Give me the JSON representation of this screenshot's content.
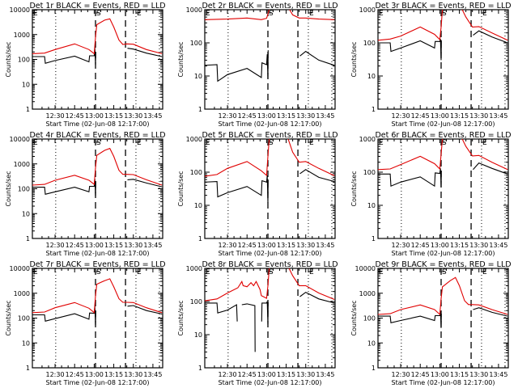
{
  "figure": {
    "xlabel": "Start Time (02-Jun-08 12:17:00)",
    "ylabel": "Counts/sec",
    "title_suffix": " BLACK = Events, RED = LLD",
    "xticks": [
      "12:30",
      "12:45",
      "13:00",
      "13:15",
      "13:30",
      "13:45"
    ],
    "xticks_min": [
      30,
      45,
      60,
      75,
      90,
      105
    ],
    "xrange_min": [
      12.6,
      112.5
    ],
    "dotted_lines_min": [
      30.5,
      92,
      110
    ],
    "dashed_lines_min": [
      61,
      84
    ],
    "markers": [
      {
        "label": "E",
        "at_min": 12.6,
        "bracket": "left"
      },
      {
        "label": "S",
        "at_min": 61,
        "bracket": "left"
      },
      {
        "label": "E",
        "at_min": 92,
        "bracket": "left"
      }
    ],
    "colors": {
      "events": "#000000",
      "lld": "#e00000"
    }
  },
  "chart_data": [
    {
      "type": "line",
      "title": "Det 1r BLACK = Events, RED = LLD",
      "ylim": [
        1,
        10000
      ],
      "yscale": "log",
      "yticks": [
        "1",
        "10",
        "100",
        "1000",
        "10000"
      ],
      "series": [
        {
          "name": "Events",
          "x": [
            12.6,
            22,
            22.5,
            30,
            45,
            56,
            56.5,
            60,
            60.5,
            61,
            61.2,
            61.5,
            85,
            85.5,
            90,
            100,
            112
          ],
          "y": [
            130,
            130,
            70,
            90,
            135,
            80,
            140,
            140,
            300,
            60,
            200,
            null,
            null,
            280,
            260,
            180,
            130
          ]
        },
        {
          "name": "LLD",
          "x": [
            12.6,
            22,
            30,
            45,
            56,
            60,
            61,
            62,
            68,
            72,
            75,
            79,
            82,
            85,
            90,
            100,
            112
          ],
          "y": [
            170,
            180,
            250,
            420,
            250,
            170,
            800,
            2500,
            3800,
            4300,
            2000,
            600,
            400,
            420,
            410,
            250,
            170
          ]
        }
      ]
    },
    {
      "type": "line",
      "title": "Det 2r BLACK = Events, RED = LLD",
      "ylim": [
        1,
        1000
      ],
      "yscale": "log",
      "yticks": [
        "1",
        "10",
        "100",
        "1000"
      ],
      "series": [
        {
          "name": "Events",
          "x": [
            12.6,
            22,
            22.5,
            30,
            45,
            56,
            56.5,
            60,
            60.5,
            61,
            61.2,
            61.5,
            85,
            85.5,
            90,
            100,
            112
          ],
          "y": [
            21,
            22,
            7,
            11,
            17,
            9,
            25,
            22,
            45,
            8,
            60,
            null,
            null,
            40,
            55,
            30,
            21
          ]
        },
        {
          "name": "LLD",
          "x": [
            12.6,
            30,
            45,
            56,
            60,
            62,
            64,
            75,
            80,
            85,
            90,
            100,
            112
          ],
          "y": [
            500,
            520,
            560,
            500,
            550,
            1000,
            1500,
            1500,
            700,
            560,
            560,
            520,
            500
          ]
        }
      ]
    },
    {
      "type": "line",
      "title": "Det 3r BLACK = Events, RED = LLD",
      "ylim": [
        1,
        1000
      ],
      "yscale": "log",
      "yticks": [
        "1",
        "10",
        "100",
        "1000"
      ],
      "series": [
        {
          "name": "Events",
          "x": [
            12.6,
            22,
            22.5,
            30,
            45,
            56,
            56.5,
            60,
            60.5,
            61,
            61.2,
            61.5,
            85,
            85.5,
            90,
            100,
            112
          ],
          "y": [
            100,
            100,
            55,
            70,
            115,
            70,
            110,
            110,
            130,
            30,
            120,
            null,
            null,
            170,
            230,
            150,
            100
          ]
        },
        {
          "name": "LLD",
          "x": [
            12.6,
            22,
            30,
            45,
            56,
            60,
            61,
            62,
            64,
            75,
            80,
            85,
            90,
            100,
            112
          ],
          "y": [
            120,
            130,
            160,
            300,
            180,
            125,
            300,
            1000,
            1500,
            1500,
            600,
            300,
            310,
            200,
            120
          ]
        }
      ]
    },
    {
      "type": "line",
      "title": "Det 4r BLACK = Events, RED = LLD",
      "ylim": [
        1,
        10000
      ],
      "yscale": "log",
      "yticks": [
        "1",
        "10",
        "100",
        "1000",
        "10000"
      ],
      "series": [
        {
          "name": "Events",
          "x": [
            12.6,
            22,
            22.5,
            30,
            45,
            56,
            56.5,
            60,
            60.5,
            61,
            61.2,
            61.5,
            85,
            85.5,
            90,
            100,
            112
          ],
          "y": [
            115,
            115,
            60,
            75,
            115,
            75,
            125,
            125,
            250,
            50,
            200,
            null,
            null,
            230,
            240,
            170,
            120
          ]
        },
        {
          "name": "LLD",
          "x": [
            12.6,
            22,
            30,
            45,
            56,
            60,
            61,
            62,
            68,
            72,
            75,
            79,
            82,
            85,
            90,
            100,
            112
          ],
          "y": [
            140,
            150,
            220,
            350,
            220,
            150,
            700,
            2200,
            3500,
            4200,
            2000,
            550,
            380,
            380,
            370,
            230,
            140
          ]
        }
      ]
    },
    {
      "type": "line",
      "title": "Det 5r BLACK = Events, RED = LLD",
      "ylim": [
        1,
        1000
      ],
      "yscale": "log",
      "yticks": [
        "1",
        "10",
        "100",
        "1000"
      ],
      "series": [
        {
          "name": "Events",
          "x": [
            12.6,
            22,
            22.5,
            30,
            45,
            56,
            56.5,
            60,
            60.5,
            61,
            61.2,
            61.5,
            85,
            85.5,
            90,
            100,
            112
          ],
          "y": [
            50,
            52,
            18,
            24,
            37,
            20,
            55,
            50,
            80,
            12,
            60,
            null,
            null,
            90,
            120,
            70,
            52
          ]
        },
        {
          "name": "LLD",
          "x": [
            12.6,
            22,
            30,
            45,
            56,
            60,
            61,
            62,
            64,
            75,
            80,
            85,
            90,
            100,
            112
          ],
          "y": [
            75,
            85,
            130,
            210,
            110,
            80,
            300,
            1000,
            1500,
            1500,
            400,
            200,
            210,
            130,
            78
          ]
        }
      ]
    },
    {
      "type": "line",
      "title": "Det 6r BLACK = Events, RED = LLD",
      "ylim": [
        1,
        1000
      ],
      "yscale": "log",
      "yticks": [
        "1",
        "10",
        "100",
        "1000"
      ],
      "series": [
        {
          "name": "Events",
          "x": [
            12.6,
            22,
            22.5,
            30,
            45,
            56,
            56.5,
            60,
            60.5,
            61,
            61.2,
            61.5,
            85,
            85.5,
            90,
            100,
            112
          ],
          "y": [
            88,
            88,
            38,
            50,
            72,
            38,
            95,
            92,
            130,
            35,
            110,
            null,
            null,
            120,
            190,
            130,
            88
          ]
        },
        {
          "name": "LLD",
          "x": [
            12.6,
            22,
            30,
            45,
            56,
            60,
            61,
            62,
            64,
            75,
            80,
            85,
            90,
            100,
            112
          ],
          "y": [
            120,
            125,
            170,
            300,
            180,
            125,
            350,
            1000,
            1500,
            1500,
            600,
            310,
            320,
            200,
            120
          ]
        }
      ]
    },
    {
      "type": "line",
      "title": "Det 7r BLACK = Events, RED = LLD",
      "ylim": [
        1,
        10000
      ],
      "yscale": "log",
      "yticks": [
        "1",
        "10",
        "100",
        "1000",
        "10000"
      ],
      "series": [
        {
          "name": "Events",
          "x": [
            12.6,
            22,
            22.5,
            30,
            45,
            56,
            56.5,
            60,
            60.5,
            61,
            61.2,
            61.5,
            85,
            85.5,
            90,
            100,
            112
          ],
          "y": [
            135,
            135,
            75,
            95,
            150,
            90,
            160,
            155,
            300,
            50,
            200,
            null,
            null,
            300,
            320,
            200,
            145
          ]
        },
        {
          "name": "LLD",
          "x": [
            12.6,
            22,
            30,
            45,
            56,
            60,
            61,
            62,
            68,
            72,
            75,
            79,
            82,
            85,
            90,
            100,
            112
          ],
          "y": [
            165,
            175,
            260,
            420,
            250,
            165,
            800,
            2300,
            3200,
            3800,
            1800,
            600,
            430,
            430,
            420,
            260,
            165
          ]
        }
      ]
    },
    {
      "type": "line",
      "title": "Det 8r BLACK = Events, RED = LLD",
      "ylim": [
        1,
        1000
      ],
      "yscale": "log",
      "yticks": [
        "1",
        "10",
        "100",
        "1000"
      ],
      "series": [
        {
          "name": "Events",
          "x": [
            12.6,
            22,
            22.5,
            30,
            37,
            37.5,
            38,
            41,
            45,
            51,
            51.2,
            51.5,
            56,
            56.2,
            56.5,
            60,
            60.5,
            61,
            61.2,
            61.5,
            85,
            85.5,
            90,
            100,
            112
          ],
          "y": [
            90,
            90,
            45,
            55,
            80,
            25,
            null,
            80,
            85,
            75,
            3,
            null,
            null,
            25,
            90,
            90,
            100,
            20,
            95,
            null,
            null,
            140,
            190,
            120,
            90
          ]
        },
        {
          "name": "LLD",
          "x": [
            12.6,
            22,
            30,
            38,
            41,
            42,
            45,
            48,
            50,
            52,
            55,
            56,
            60,
            61,
            62,
            64,
            75,
            80,
            85,
            90,
            100,
            112
          ],
          "y": [
            105,
            120,
            180,
            260,
            400,
            300,
            280,
            370,
            300,
            400,
            230,
            150,
            125,
            300,
            1000,
            1500,
            1500,
            600,
            300,
            300,
            180,
            115
          ]
        }
      ]
    },
    {
      "type": "line",
      "title": "Det 9r BLACK = Events, RED = LLD",
      "ylim": [
        1,
        10000
      ],
      "yscale": "log",
      "yticks": [
        "1",
        "10",
        "100",
        "1000",
        "10000"
      ],
      "series": [
        {
          "name": "Events",
          "x": [
            12.6,
            22,
            22.5,
            30,
            45,
            56,
            56.5,
            60,
            60.5,
            61,
            61.2,
            61.5,
            85,
            85.5,
            90,
            100,
            112
          ],
          "y": [
            120,
            120,
            65,
            80,
            120,
            80,
            125,
            125,
            190,
            40,
            150,
            null,
            null,
            220,
            260,
            170,
            120
          ]
        },
        {
          "name": "LLD",
          "x": [
            12.6,
            22,
            30,
            45,
            56,
            60,
            61,
            62,
            68,
            72,
            75,
            79,
            82,
            85,
            90,
            100,
            112
          ],
          "y": [
            140,
            150,
            220,
            340,
            220,
            140,
            600,
            1800,
            3200,
            4300,
            2000,
            500,
            350,
            350,
            340,
            220,
            140
          ]
        }
      ]
    }
  ]
}
